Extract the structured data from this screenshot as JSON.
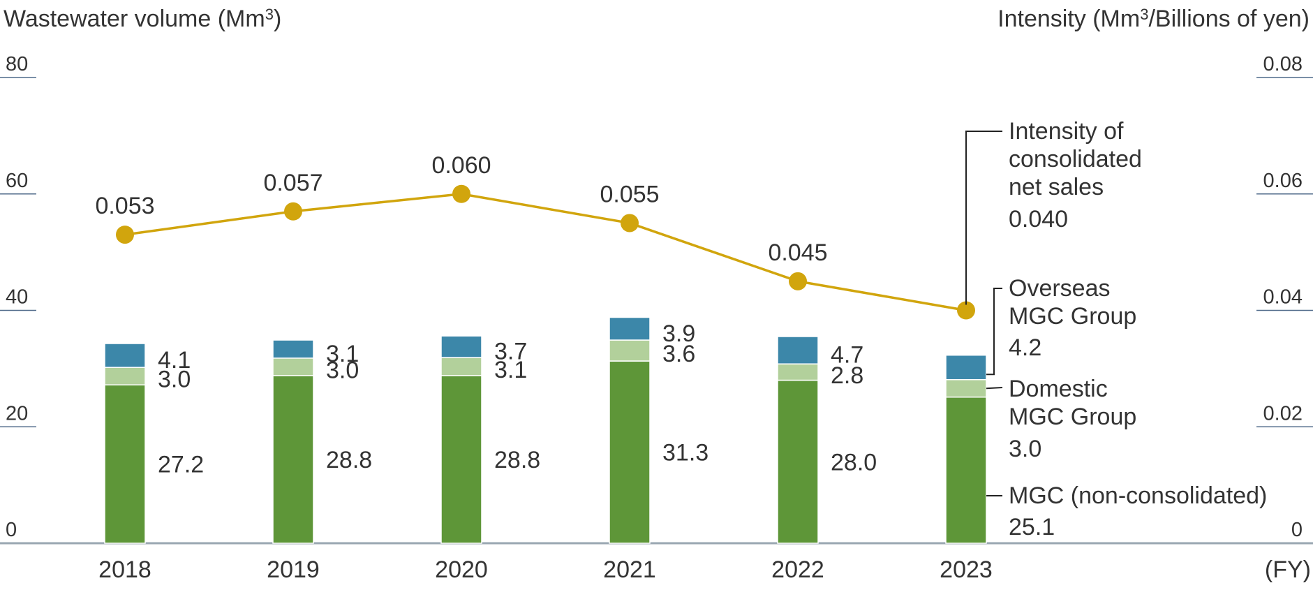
{
  "chart_data": {
    "type": "bar+line",
    "left_axis": {
      "title": "Wastewater volume (Mm",
      "title_sup": "3",
      "title_end": ")",
      "range": [
        0,
        80
      ],
      "ticks": [
        "0",
        "20",
        "40",
        "60",
        "80"
      ]
    },
    "right_axis": {
      "title": "Intensity (Mm",
      "title_sup": "3",
      "title_end": "/Billions of yen)",
      "range": [
        0,
        0.08
      ],
      "ticks": [
        "0",
        "0.02",
        "0.04",
        "0.06",
        "0.08"
      ]
    },
    "x_unit": "(FY)",
    "categories": [
      "2018",
      "2019",
      "2020",
      "2021",
      "2022",
      "2023"
    ],
    "series": [
      {
        "name": "MGC (non-consolidated)",
        "kind": "bar",
        "color": "#5e9638",
        "values": [
          27.2,
          28.8,
          28.8,
          31.3,
          28.0,
          25.1
        ],
        "labels": [
          "27.2",
          "28.8",
          "28.8",
          "31.3",
          "28.0",
          "25.1"
        ]
      },
      {
        "name": "Domestic MGC Group",
        "kind": "bar",
        "color": "#b2d09b",
        "values": [
          3.0,
          3.0,
          3.1,
          3.6,
          2.8,
          3.0
        ],
        "labels": [
          "3.0",
          "3.0",
          "3.1",
          "3.6",
          "2.8",
          "3.0"
        ]
      },
      {
        "name": "Overseas MGC Group",
        "kind": "bar",
        "color": "#3c87a9",
        "values": [
          4.1,
          3.1,
          3.7,
          3.9,
          4.7,
          4.2
        ],
        "labels": [
          "4.1",
          "3.1",
          "3.7",
          "3.9",
          "4.7",
          "4.2"
        ]
      },
      {
        "name": "Intensity of consolidated net sales",
        "kind": "line",
        "axis": "right",
        "color": "#d1a50d",
        "values": [
          0.053,
          0.057,
          0.06,
          0.055,
          0.045,
          0.04
        ],
        "labels": [
          "0.053",
          "0.057",
          "0.060",
          "0.055",
          "0.045",
          "0.040"
        ]
      }
    ],
    "legend": {
      "intensity": [
        "Intensity of",
        "consolidated",
        "net sales"
      ],
      "overseas": [
        "Overseas",
        "MGC Group"
      ],
      "domestic": [
        "Domestic",
        "MGC Group"
      ],
      "mgc": [
        "MGC (non-consolidated)"
      ]
    },
    "gridlines": false
  }
}
